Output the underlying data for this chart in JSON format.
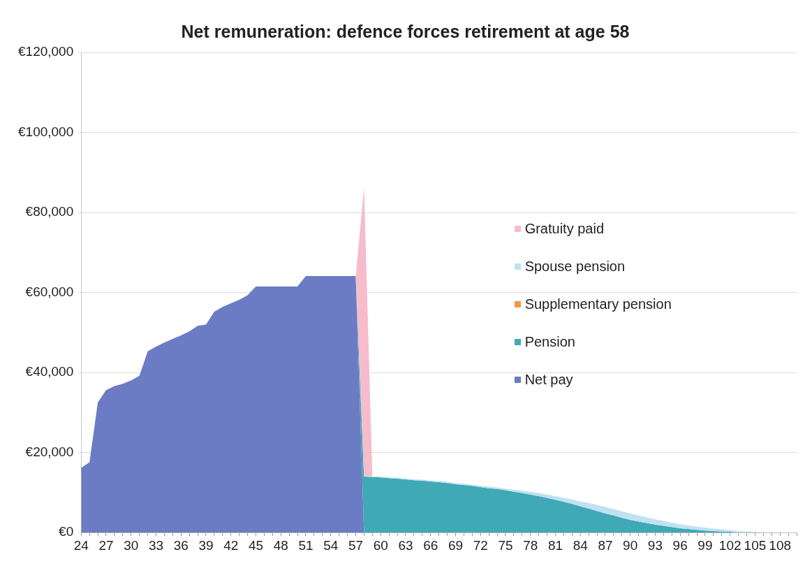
{
  "chart_data": {
    "type": "area",
    "title": "Net remuneration: defence forces retirement at age 58",
    "categories": [
      "24",
      null,
      null,
      "27",
      null,
      null,
      "30",
      null,
      null,
      "33",
      null,
      null,
      "36",
      null,
      null,
      "39",
      null,
      null,
      "42",
      null,
      null,
      "45",
      null,
      null,
      "48",
      null,
      null,
      "51",
      null,
      null,
      "54",
      null,
      null,
      "57",
      null,
      null,
      "60",
      null,
      null,
      "63",
      null,
      null,
      "66",
      null,
      null,
      "69",
      null,
      null,
      "72",
      null,
      null,
      "75",
      null,
      null,
      "78",
      null,
      null,
      "81",
      null,
      null,
      "84",
      null,
      null,
      "87",
      null,
      null,
      "90",
      null,
      null,
      "93",
      null,
      null,
      "96",
      null,
      null,
      "99",
      null,
      null,
      "102",
      null,
      null,
      "105",
      null,
      null,
      "108",
      null,
      null
    ],
    "stacked": true,
    "series": [
      {
        "name": "Net pay",
        "color": "#6b7cc4",
        "values": [
          16200,
          17600,
          32500,
          35600,
          36600,
          37200,
          38000,
          39200,
          45300,
          46500,
          47500,
          48400,
          49300,
          50300,
          51700,
          52000,
          55200,
          56400,
          57300,
          58200,
          59300,
          61500,
          61500,
          61500,
          61500,
          61500,
          61500,
          64100,
          64100,
          64100,
          64100,
          64100,
          64100,
          64100,
          0,
          null,
          null,
          null,
          null,
          null,
          null,
          null,
          null,
          null,
          null,
          null,
          null,
          null,
          null,
          null,
          null,
          null,
          null,
          null,
          null,
          null,
          null,
          null,
          null,
          null,
          null,
          null,
          null,
          null,
          null,
          null,
          null,
          null,
          null,
          null,
          null,
          null,
          null,
          null,
          null,
          null,
          null,
          null,
          null,
          null,
          null,
          null,
          null,
          null,
          null,
          null,
          null
        ]
      },
      {
        "name": "Pension",
        "color": "#3fa9b5",
        "values": [
          null,
          null,
          null,
          null,
          null,
          null,
          null,
          null,
          null,
          null,
          null,
          null,
          null,
          null,
          null,
          null,
          null,
          null,
          null,
          null,
          null,
          null,
          null,
          null,
          null,
          null,
          null,
          null,
          null,
          null,
          null,
          null,
          null,
          0,
          14000,
          13900,
          13800,
          13600,
          13500,
          13300,
          13100,
          13000,
          12800,
          12600,
          12400,
          12100,
          11900,
          11700,
          11400,
          11100,
          10900,
          10600,
          10200,
          9900,
          9500,
          9100,
          8700,
          8200,
          7700,
          7200,
          6600,
          6000,
          5400,
          4800,
          4300,
          3700,
          3200,
          2800,
          2400,
          2000,
          1700,
          1400,
          1100,
          900,
          700,
          500,
          400,
          300,
          200,
          100,
          100,
          100,
          0,
          null,
          null,
          null,
          null
        ]
      },
      {
        "name": "Supplementary pension",
        "color": "#f79646",
        "values": [
          null,
          null,
          null,
          null,
          null,
          null,
          null,
          null,
          null,
          null,
          null,
          null,
          null,
          null,
          null,
          null,
          null,
          null,
          null,
          null,
          null,
          null,
          null,
          null,
          null,
          null,
          null,
          null,
          null,
          null,
          null,
          null,
          null,
          null,
          null,
          null,
          null,
          null,
          null,
          null,
          null,
          null,
          null,
          null,
          null,
          null,
          null,
          null,
          null,
          null,
          null,
          null,
          null,
          null,
          null,
          null,
          null,
          null,
          null,
          null,
          null,
          null,
          null,
          null,
          null,
          null,
          null,
          null,
          null,
          null,
          null,
          null,
          null,
          null,
          null,
          null,
          null,
          null,
          null,
          null,
          null,
          null,
          null,
          null,
          null,
          null,
          null
        ]
      },
      {
        "name": "Spouse pension",
        "color": "#bfe1f3",
        "values": [
          null,
          null,
          null,
          null,
          null,
          null,
          null,
          null,
          null,
          null,
          null,
          null,
          null,
          null,
          null,
          null,
          null,
          null,
          null,
          null,
          null,
          null,
          null,
          null,
          null,
          null,
          null,
          null,
          null,
          null,
          null,
          null,
          null,
          0,
          200,
          200,
          200,
          200,
          200,
          200,
          200,
          200,
          200,
          300,
          300,
          300,
          300,
          300,
          300,
          400,
          400,
          400,
          500,
          600,
          700,
          800,
          800,
          900,
          1000,
          1100,
          1200,
          1400,
          1500,
          1600,
          1600,
          1600,
          1600,
          1500,
          1400,
          1300,
          1200,
          1100,
          1000,
          900,
          800,
          700,
          600,
          500,
          400,
          300,
          200,
          100,
          100,
          100,
          100,
          0,
          null
        ]
      },
      {
        "name": "Gratuity paid",
        "color": "#f6bccb",
        "values": [
          null,
          null,
          null,
          null,
          null,
          null,
          null,
          null,
          null,
          null,
          null,
          null,
          null,
          null,
          null,
          null,
          null,
          null,
          null,
          null,
          null,
          null,
          null,
          null,
          null,
          null,
          null,
          null,
          null,
          null,
          null,
          null,
          null,
          0,
          72000,
          0,
          null,
          null,
          null,
          null,
          null,
          null,
          null,
          null,
          null,
          null,
          null,
          null,
          null,
          null,
          null,
          null,
          null,
          null,
          null,
          null,
          null,
          null,
          null,
          null,
          null,
          null,
          null,
          null,
          null,
          null,
          null,
          null,
          null,
          null,
          null,
          null,
          null,
          null,
          null,
          null,
          null,
          null,
          null,
          null,
          null,
          null,
          null,
          null,
          null,
          null,
          null
        ]
      }
    ],
    "ylim": [
      0,
      120000
    ],
    "yticks": [
      {
        "value": 0,
        "label": "€0"
      },
      {
        "value": 20000,
        "label": "€20,000"
      },
      {
        "value": 40000,
        "label": "€40,000"
      },
      {
        "value": 60000,
        "label": "€60,000"
      },
      {
        "value": 80000,
        "label": "€80,000"
      },
      {
        "value": 100000,
        "label": "€100,000"
      },
      {
        "value": 120000,
        "label": "€120,000"
      }
    ],
    "grid": "y",
    "legend": "right"
  }
}
